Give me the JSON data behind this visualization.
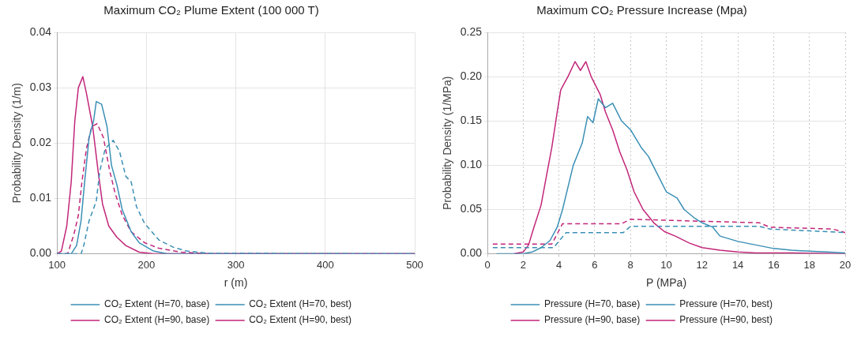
{
  "chart_data": [
    {
      "type": "line",
      "title": "Maximum CO₂ Plume Extent (100 000 T)",
      "xlabel": "r (m)",
      "ylabel": "Probability Density (1/m)",
      "xlim": [
        100,
        500
      ],
      "xticks": [
        100,
        200,
        300,
        400,
        500
      ],
      "ylim": [
        0,
        0.04
      ],
      "yticks": [
        {
          "value": 0,
          "label": "0.00"
        },
        {
          "value": 0.01,
          "label": "0.01"
        },
        {
          "value": 0.02,
          "label": "0.02"
        },
        {
          "value": 0.03,
          "label": "0.03"
        },
        {
          "value": 0.04,
          "label": "0.04"
        }
      ],
      "grid": true,
      "legend": "bottom",
      "marker": "none",
      "series": [
        {
          "name": "CO₂ Extent (H=70, base)",
          "color": "#3a8fb5",
          "line_style": "dashed",
          "x": [
            100,
            127,
            130,
            136,
            144,
            148,
            154,
            163,
            170,
            177,
            183,
            189,
            198,
            214,
            230,
            245,
            270,
            500
          ],
          "values": [
            0,
            0,
            0.0015,
            0.006,
            0.0095,
            0.015,
            0.019,
            0.0205,
            0.0185,
            0.014,
            0.013,
            0.0085,
            0.0055,
            0.0025,
            0.0012,
            0.0005,
            0.0001,
            0
          ]
        },
        {
          "name": "CO₂ Extent (H=70, best)",
          "color": "#3a8fb5",
          "line_style": "solid",
          "x": [
            100,
            116,
            122,
            127,
            131,
            136,
            141,
            144,
            150,
            156,
            161,
            167,
            173,
            183,
            192,
            208,
            223,
            500
          ],
          "values": [
            0,
            0,
            0.0015,
            0.006,
            0.013,
            0.021,
            0.024,
            0.0275,
            0.027,
            0.023,
            0.016,
            0.0125,
            0.008,
            0.004,
            0.002,
            0.0005,
            0,
            0
          ]
        },
        {
          "name": "CO₂ Extent (H=90, base)",
          "color": "#c2267a",
          "line_style": "dashed",
          "x": [
            100,
            112,
            119,
            124,
            128,
            133,
            139,
            145,
            152,
            159,
            165,
            173,
            183,
            198,
            214,
            239,
            270,
            500
          ],
          "values": [
            0,
            0,
            0.0035,
            0.007,
            0.013,
            0.019,
            0.023,
            0.0235,
            0.021,
            0.015,
            0.011,
            0.007,
            0.004,
            0.002,
            0.001,
            0.0003,
            0,
            0
          ]
        },
        {
          "name": "CO₂ Extent (H=90, best)",
          "color": "#c2267a",
          "line_style": "solid",
          "x": [
            100,
            105,
            111,
            116,
            120,
            124,
            129,
            133,
            140,
            146,
            151,
            158,
            167,
            177,
            192,
            208,
            500
          ],
          "values": [
            0,
            0.0005,
            0.005,
            0.013,
            0.024,
            0.03,
            0.032,
            0.029,
            0.023,
            0.015,
            0.009,
            0.005,
            0.003,
            0.0015,
            0.0003,
            0,
            0
          ]
        }
      ]
    },
    {
      "type": "line",
      "title": "Maximum CO₂ Pressure Increase (Mpa)",
      "xlabel": "P (MPa)",
      "ylabel": "Probability Density (1/MPa)",
      "xlim": [
        0,
        20
      ],
      "xticks": [
        0,
        2,
        4,
        6,
        8,
        10,
        12,
        14,
        16,
        18,
        20
      ],
      "ylim": [
        0,
        0.25
      ],
      "yticks": [
        {
          "value": 0,
          "label": "0.00"
        },
        {
          "value": 0.05,
          "label": "0.05"
        },
        {
          "value": 0.1,
          "label": "0.10"
        },
        {
          "value": 0.15,
          "label": "0.15"
        },
        {
          "value": 0.2,
          "label": "0.20"
        },
        {
          "value": 0.25,
          "label": "0.25"
        }
      ],
      "grid": true,
      "legend": "bottom",
      "marker": "none",
      "series": [
        {
          "name": "Pressure (H=70, base)",
          "color": "#3a8fb5",
          "line_style": "dashed",
          "x": [
            0.3,
            3.7,
            4.4,
            7.6,
            8.0,
            15.2,
            15.8,
            20
          ],
          "values": [
            0.007,
            0.007,
            0.024,
            0.024,
            0.031,
            0.031,
            0.028,
            0.024
          ]
        },
        {
          "name": "Pressure (H=70, best)",
          "color": "#3a8fb5",
          "line_style": "solid",
          "x": [
            0.5,
            2.0,
            2.5,
            3.0,
            3.5,
            3.9,
            4.2,
            4.5,
            4.8,
            5.1,
            5.3,
            5.6,
            5.9,
            6.2,
            6.6,
            7.0,
            7.5,
            8.0,
            8.6,
            9.0,
            9.5,
            10.0,
            10.6,
            11.0,
            11.6,
            12.0,
            12.6,
            13,
            14,
            15,
            16,
            17,
            18,
            19,
            20
          ],
          "values": [
            0,
            0,
            0.002,
            0.007,
            0.015,
            0.03,
            0.05,
            0.075,
            0.1,
            0.115,
            0.125,
            0.155,
            0.148,
            0.175,
            0.165,
            0.17,
            0.15,
            0.14,
            0.12,
            0.11,
            0.09,
            0.07,
            0.063,
            0.05,
            0.04,
            0.035,
            0.03,
            0.02,
            0.014,
            0.01,
            0.006,
            0.004,
            0.003,
            0.002,
            0.001
          ]
        },
        {
          "name": "Pressure (H=90, base)",
          "color": "#c2267a",
          "line_style": "dashed",
          "x": [
            0.3,
            3.6,
            4.2,
            7.5,
            8.0,
            15.2,
            15.8,
            19.3,
            20
          ],
          "values": [
            0.011,
            0.011,
            0.034,
            0.034,
            0.039,
            0.035,
            0.03,
            0.028,
            0.024
          ]
        },
        {
          "name": "Pressure (H=90, best)",
          "color": "#c2267a",
          "line_style": "solid",
          "x": [
            1.5,
            2.0,
            2.3,
            2.6,
            3.0,
            3.3,
            3.6,
            3.9,
            4.1,
            4.5,
            4.9,
            5.2,
            5.5,
            5.8,
            6.3,
            6.6,
            7.0,
            7.4,
            7.8,
            8.2,
            8.7,
            9.3,
            9.9,
            10.5,
            11.3,
            12.0,
            13.0,
            14.0,
            15.0,
            17,
            20
          ],
          "values": [
            0,
            0.002,
            0.01,
            0.03,
            0.055,
            0.088,
            0.12,
            0.16,
            0.185,
            0.2,
            0.217,
            0.207,
            0.217,
            0.2,
            0.18,
            0.16,
            0.14,
            0.115,
            0.095,
            0.07,
            0.05,
            0.035,
            0.025,
            0.02,
            0.012,
            0.007,
            0.004,
            0.002,
            0.001,
            0.001,
            0
          ]
        }
      ]
    }
  ]
}
